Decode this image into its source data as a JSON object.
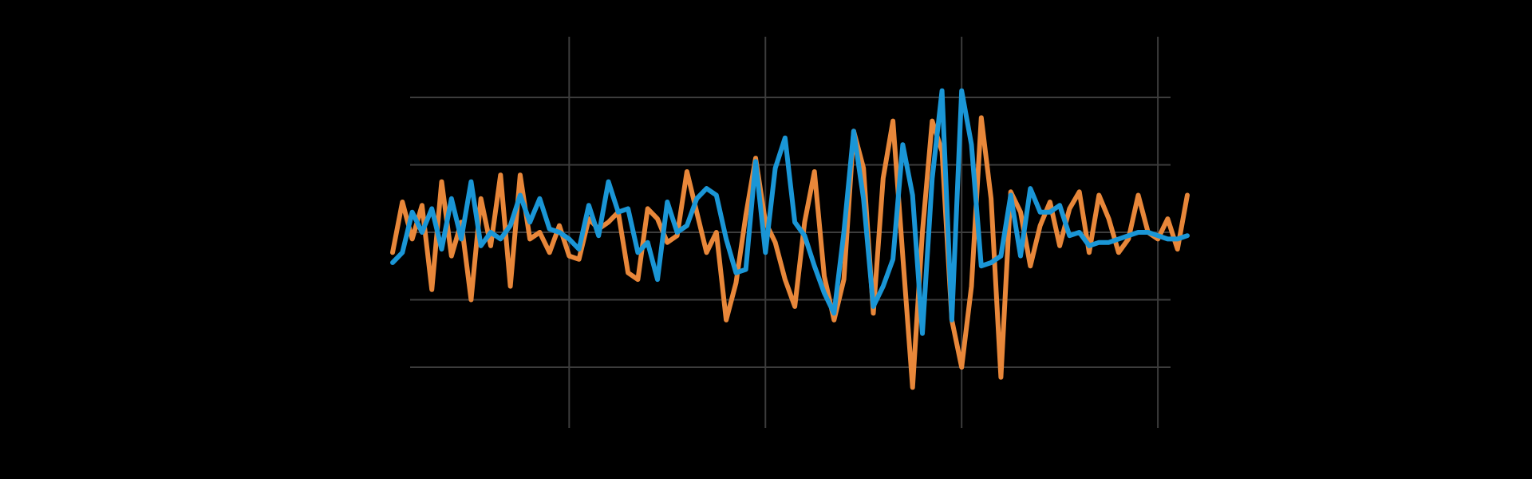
{
  "chart_data": {
    "type": "line",
    "title": "",
    "xlabel": "",
    "ylabel": "",
    "grid": true,
    "legend": "none",
    "background": "#000000",
    "grid_color": "#3c3c3c",
    "xlim": [
      -0.9,
      3.15
    ],
    "ylim": [
      -2.9,
      2.9
    ],
    "x_gridlines": [
      0,
      1,
      2,
      3
    ],
    "y_gridlines": [
      -2,
      -1,
      0,
      1,
      2
    ],
    "series": [
      {
        "color": "#e8873a",
        "x": [
          -0.9,
          -0.85,
          -0.8,
          -0.75,
          -0.7,
          -0.65,
          -0.6,
          -0.55,
          -0.5,
          -0.45,
          -0.4,
          -0.35,
          -0.3,
          -0.25,
          -0.2,
          -0.15,
          -0.1,
          -0.05,
          0,
          0.05,
          0.1,
          0.15,
          0.2,
          0.25,
          0.3,
          0.35,
          0.4,
          0.45,
          0.5,
          0.55,
          0.6,
          0.65,
          0.7,
          0.75,
          0.8,
          0.85,
          0.9,
          0.95,
          1,
          1.05,
          1.1,
          1.15,
          1.2,
          1.25,
          1.3,
          1.35,
          1.4,
          1.45,
          1.5,
          1.55,
          1.6,
          1.65,
          1.7,
          1.75,
          1.8,
          1.85,
          1.9,
          1.95,
          2,
          2.05,
          2.1,
          2.15,
          2.2,
          2.25,
          2.3,
          2.35,
          2.4,
          2.45,
          2.5,
          2.55,
          2.6,
          2.65,
          2.7,
          2.75,
          2.8,
          2.85,
          2.9,
          2.95,
          3,
          3.05,
          3.1,
          3.15
        ],
        "values": [
          -0.3,
          0.45,
          -0.1,
          0.4,
          -0.85,
          0.75,
          -0.35,
          0.15,
          -1.0,
          0.5,
          -0.2,
          0.85,
          -0.8,
          0.85,
          -0.1,
          0.0,
          -0.3,
          0.1,
          -0.35,
          -0.4,
          0.2,
          0.05,
          0.15,
          0.3,
          -0.6,
          -0.7,
          0.35,
          0.2,
          -0.15,
          -0.05,
          0.9,
          0.3,
          -0.3,
          0.0,
          -1.3,
          -0.75,
          0.25,
          1.1,
          0.15,
          -0.15,
          -0.7,
          -1.1,
          0.15,
          0.9,
          -0.65,
          -1.3,
          -0.7,
          1.5,
          0.95,
          -1.2,
          0.8,
          1.65,
          -0.35,
          -2.3,
          0.0,
          1.65,
          1.2,
          -1.3,
          -2.0,
          -0.8,
          1.7,
          0.5,
          -2.15,
          0.6,
          0.3,
          -0.5,
          0.1,
          0.45,
          -0.2,
          0.35,
          0.6,
          -0.3,
          0.55,
          0.2,
          -0.3,
          -0.1,
          0.55,
          0.0,
          -0.1,
          0.2,
          -0.25,
          0.55
        ]
      },
      {
        "color": "#1a96d6",
        "x": [
          -0.9,
          -0.85,
          -0.8,
          -0.75,
          -0.7,
          -0.65,
          -0.6,
          -0.55,
          -0.5,
          -0.45,
          -0.4,
          -0.35,
          -0.3,
          -0.25,
          -0.2,
          -0.15,
          -0.1,
          -0.05,
          0,
          0.05,
          0.1,
          0.15,
          0.2,
          0.25,
          0.3,
          0.35,
          0.4,
          0.45,
          0.5,
          0.55,
          0.6,
          0.65,
          0.7,
          0.75,
          0.8,
          0.85,
          0.9,
          0.95,
          1,
          1.05,
          1.1,
          1.15,
          1.2,
          1.25,
          1.3,
          1.35,
          1.4,
          1.45,
          1.5,
          1.55,
          1.6,
          1.65,
          1.7,
          1.75,
          1.8,
          1.85,
          1.9,
          1.95,
          2,
          2.05,
          2.1,
          2.15,
          2.2,
          2.25,
          2.3,
          2.35,
          2.4,
          2.45,
          2.5,
          2.55,
          2.6,
          2.65,
          2.7,
          2.75,
          2.8,
          2.85,
          2.9,
          2.95,
          3,
          3.05,
          3.1,
          3.15
        ],
        "values": [
          -0.45,
          -0.3,
          0.3,
          0.0,
          0.35,
          -0.25,
          0.5,
          -0.1,
          0.75,
          -0.2,
          0.0,
          -0.1,
          0.1,
          0.55,
          0.15,
          0.5,
          0.05,
          0.0,
          -0.1,
          -0.25,
          0.4,
          -0.05,
          0.75,
          0.3,
          0.35,
          -0.3,
          -0.15,
          -0.7,
          0.45,
          0.0,
          0.1,
          0.5,
          0.65,
          0.55,
          -0.1,
          -0.6,
          -0.55,
          1.05,
          -0.3,
          0.95,
          1.4,
          0.15,
          -0.05,
          -0.5,
          -0.9,
          -1.2,
          0.0,
          1.5,
          0.5,
          -1.1,
          -0.8,
          -0.4,
          1.3,
          0.55,
          -1.5,
          0.8,
          2.1,
          -1.3,
          2.1,
          1.3,
          -0.5,
          -0.45,
          -0.35,
          0.55,
          -0.35,
          0.65,
          0.3,
          0.3,
          0.4,
          -0.05,
          0.0,
          -0.2,
          -0.15,
          -0.15,
          -0.1,
          -0.05,
          0.0,
          0.0,
          -0.05,
          -0.1,
          -0.1,
          -0.05
        ]
      }
    ]
  }
}
